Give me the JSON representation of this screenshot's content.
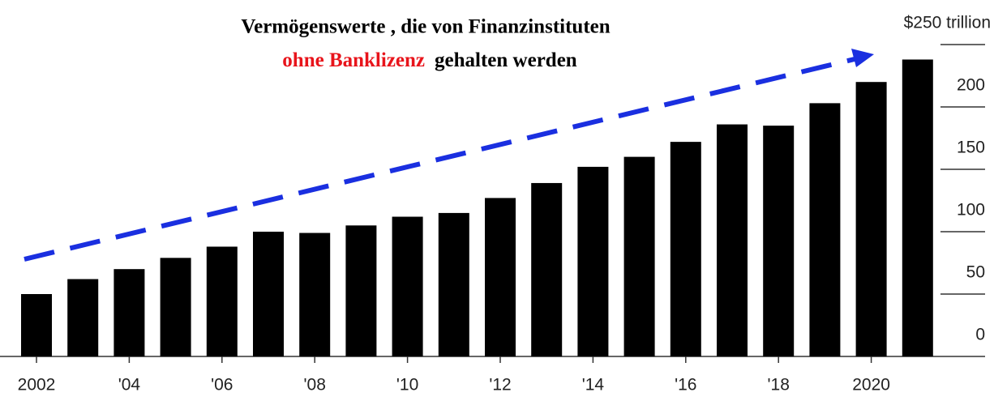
{
  "chart_data": {
    "type": "bar",
    "title": "Vermögenswerte , die von Finanzinstituten",
    "title_highlight": "ohne Banklizenz",
    "title_end": "gehalten werden",
    "categories": [
      "2002",
      null,
      "'04",
      null,
      "'06",
      null,
      "'08",
      null,
      "'10",
      null,
      "'12",
      null,
      "'14",
      null,
      "'16",
      null,
      "'18",
      null,
      "2020",
      null
    ],
    "values": [
      50,
      62,
      70,
      79,
      88,
      100,
      99,
      105,
      112,
      115,
      127,
      139,
      152,
      160,
      172,
      186,
      185,
      203,
      220,
      238
    ],
    "color": "#000000",
    "highlight_color": "#e8141b",
    "arrow_color": "#1a2fe0",
    "ylim": [
      0,
      250
    ],
    "yticks": [
      0,
      50,
      100,
      150,
      200,
      {
        "value": 250,
        "label": "$250 trillion"
      }
    ],
    "grid": false
  }
}
